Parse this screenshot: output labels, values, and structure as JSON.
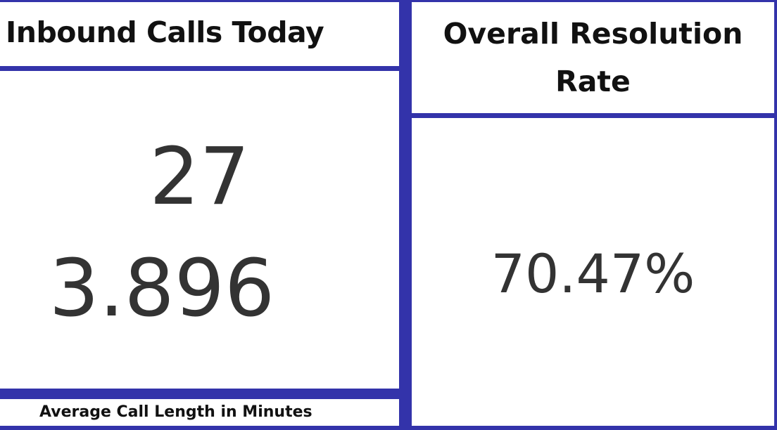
{
  "left_panel": {
    "title": "Inbound Calls Today",
    "calls_value": "27",
    "avg_value": "3.896",
    "caption": "Average Call Length in Minutes"
  },
  "right_panel": {
    "title_line1": "Overall Resolution",
    "title_line2": "Rate",
    "rate_value": "70.47%"
  },
  "colors": {
    "border": "#3333aa",
    "text": "#333333",
    "title_text": "#111111",
    "background": "#ffffff"
  }
}
